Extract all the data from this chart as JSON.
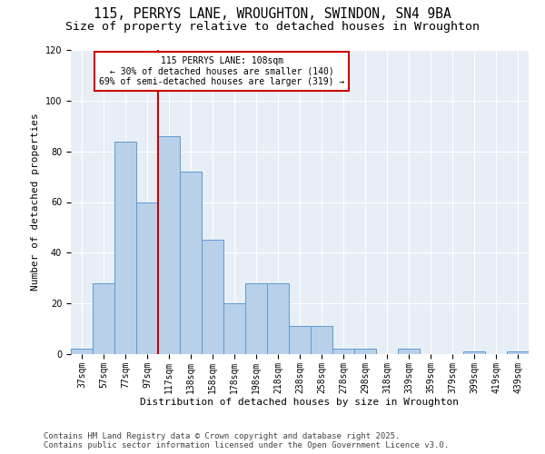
{
  "title_line1": "115, PERRYS LANE, WROUGHTON, SWINDON, SN4 9BA",
  "title_line2": "Size of property relative to detached houses in Wroughton",
  "xlabel": "Distribution of detached houses by size in Wroughton",
  "ylabel": "Number of detached properties",
  "categories": [
    "37sqm",
    "57sqm",
    "77sqm",
    "97sqm",
    "117sqm",
    "138sqm",
    "158sqm",
    "178sqm",
    "198sqm",
    "218sqm",
    "238sqm",
    "258sqm",
    "278sqm",
    "298sqm",
    "318sqm",
    "339sqm",
    "359sqm",
    "379sqm",
    "399sqm",
    "419sqm",
    "439sqm"
  ],
  "values": [
    2,
    28,
    84,
    60,
    86,
    72,
    45,
    20,
    28,
    28,
    11,
    11,
    2,
    2,
    0,
    2,
    0,
    0,
    1,
    0,
    1
  ],
  "bar_color": "#b8d0e8",
  "bar_edge_color": "#5b9bd5",
  "bar_width": 1.0,
  "vline_color": "#cc0000",
  "annotation_line1": "115 PERRYS LANE: 108sqm",
  "annotation_line2": "← 30% of detached houses are smaller (140)",
  "annotation_line3": "69% of semi-detached houses are larger (319) →",
  "annotation_box_color": "#cc0000",
  "annotation_bg": "white",
  "background_color": "#e8eef5",
  "ylim": [
    0,
    120
  ],
  "yticks": [
    0,
    20,
    40,
    60,
    80,
    100,
    120
  ],
  "footer_line1": "Contains HM Land Registry data © Crown copyright and database right 2025.",
  "footer_line2": "Contains public sector information licensed under the Open Government Licence v3.0.",
  "title_fontsize": 10.5,
  "subtitle_fontsize": 9.5,
  "axis_label_fontsize": 8,
  "tick_fontsize": 7,
  "footer_fontsize": 6.5,
  "annot_fontsize": 7
}
